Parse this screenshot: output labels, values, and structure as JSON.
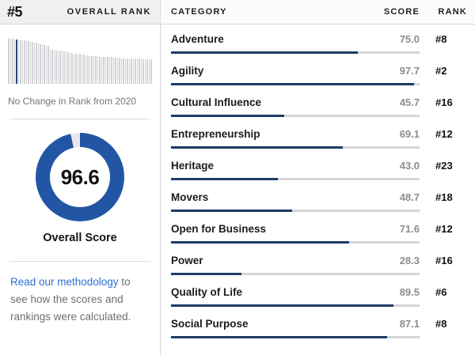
{
  "left_panel": {
    "rank": "#5",
    "rank_caption": "OVERALL RANK",
    "rank_change_note": "No Change in Rank from 2020",
    "overall_score": "96.6",
    "overall_score_value": 96.6,
    "overall_score_label": "Overall Score",
    "methodology": {
      "link_text": "Read our methodology",
      "rest_text": " to see how the scores and rankings were calculated."
    }
  },
  "table": {
    "headers": {
      "category": "CATEGORY",
      "score": "SCORE",
      "rank": "RANK"
    },
    "rows": [
      {
        "category": "Adventure",
        "score": "75.0",
        "value": 75.0,
        "rank": "#8"
      },
      {
        "category": "Agility",
        "score": "97.7",
        "value": 97.7,
        "rank": "#2"
      },
      {
        "category": "Cultural Influence",
        "score": "45.7",
        "value": 45.7,
        "rank": "#16"
      },
      {
        "category": "Entrepreneurship",
        "score": "69.1",
        "value": 69.1,
        "rank": "#12"
      },
      {
        "category": "Heritage",
        "score": "43.0",
        "value": 43.0,
        "rank": "#23"
      },
      {
        "category": "Movers",
        "score": "48.7",
        "value": 48.7,
        "rank": "#18"
      },
      {
        "category": "Open for Business",
        "score": "71.6",
        "value": 71.6,
        "rank": "#12"
      },
      {
        "category": "Power",
        "score": "28.3",
        "value": 28.3,
        "rank": "#16"
      },
      {
        "category": "Quality of Life",
        "score": "89.5",
        "value": 89.5,
        "rank": "#6"
      },
      {
        "category": "Social Purpose",
        "score": "87.1",
        "value": 87.1,
        "rank": "#8"
      }
    ]
  },
  "chart_data": [
    {
      "type": "bar",
      "name": "overall-rank-distribution",
      "title": "",
      "xlabel": "",
      "ylabel": "",
      "highlight_index": 4,
      "values": [
        100,
        99,
        98,
        97,
        96.6,
        96,
        95,
        95,
        94,
        94,
        93,
        92,
        91,
        90,
        89,
        88,
        87,
        86,
        85,
        84,
        83,
        76,
        75,
        74,
        73,
        73,
        72,
        72,
        71,
        70,
        69,
        68,
        67,
        66,
        66,
        65,
        65,
        64,
        63,
        62,
        62,
        61,
        61,
        60,
        60,
        60,
        59,
        59,
        59,
        58,
        58,
        58,
        58,
        57,
        57,
        57,
        57,
        56,
        56,
        56,
        56,
        56,
        55,
        55,
        55,
        55,
        55,
        55,
        54,
        54,
        54,
        54,
        54
      ]
    },
    {
      "type": "pie",
      "name": "overall-score-donut",
      "title": "Overall Score",
      "values": [
        96.6,
        3.4
      ],
      "labels": [
        "score",
        "remainder"
      ],
      "center_label": "96.6"
    },
    {
      "type": "bar",
      "name": "category-scores",
      "categories": [
        "Adventure",
        "Agility",
        "Cultural Influence",
        "Entrepreneurship",
        "Heritage",
        "Movers",
        "Open for Business",
        "Power",
        "Quality of Life",
        "Social Purpose"
      ],
      "values": [
        75.0,
        97.7,
        45.7,
        69.1,
        43.0,
        48.7,
        71.6,
        28.3,
        89.5,
        87.1
      ],
      "ranks": [
        "#8",
        "#2",
        "#16",
        "#12",
        "#23",
        "#18",
        "#12",
        "#16",
        "#6",
        "#8"
      ],
      "xlim": [
        0,
        100
      ]
    }
  ],
  "colors": {
    "bar_navy": "#1e3c68",
    "bar_track": "#d5d5d7",
    "donut_blue": "#2256a5",
    "donut_gap": "#e9e9eb",
    "histogram_gray": "#d3d3d7",
    "histogram_highlight": "#24477e",
    "link_blue": "#2e6fd2",
    "header_bg": "#f0f0f1"
  }
}
